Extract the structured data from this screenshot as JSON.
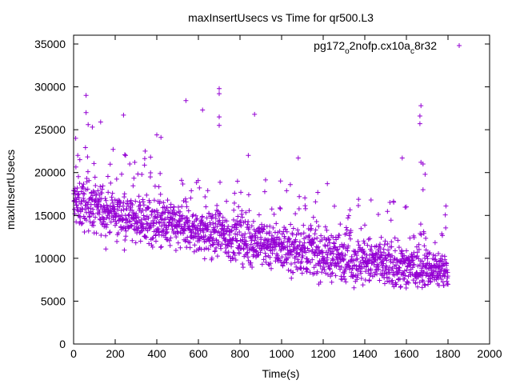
{
  "chart_data": {
    "type": "scatter",
    "title": "maxInsertUsecs vs Time for qr500.L3",
    "xlabel": "Time(s)",
    "ylabel": "maxInsertUsecs",
    "xlim": [
      0,
      2000
    ],
    "ylim": [
      0,
      36000
    ],
    "xticks": [
      0,
      200,
      400,
      600,
      800,
      1000,
      1200,
      1400,
      1600,
      1800,
      2000
    ],
    "yticks": [
      0,
      5000,
      10000,
      15000,
      20000,
      25000,
      30000,
      35000
    ],
    "grid": false,
    "legend_position": "top-right",
    "marker_color": "#9400d3",
    "series": [
      {
        "name": "pg172",
        "name_sub": "o",
        "name_mid": "2nofp.cx10a",
        "name_sub2": "c",
        "name_end": "8r32",
        "trend": {
          "x": [
            0,
            200,
            400,
            600,
            800,
            1000,
            1200,
            1400,
            1600,
            1700,
            1800
          ],
          "y": [
            16500,
            15200,
            14200,
            13200,
            12300,
            11400,
            10500,
            9600,
            9000,
            8800,
            8600
          ]
        },
        "spread": 2000,
        "sample_interval_s": 1,
        "points": [
          [
            10,
            24000
          ],
          [
            20,
            22000
          ],
          [
            30,
            21500
          ],
          [
            60,
            29000
          ],
          [
            60,
            27000
          ],
          [
            70,
            25600
          ],
          [
            90,
            25300
          ],
          [
            130,
            25900
          ],
          [
            190,
            22700
          ],
          [
            240,
            26700
          ],
          [
            250,
            22000
          ],
          [
            370,
            21800
          ],
          [
            400,
            24400
          ],
          [
            420,
            24100
          ],
          [
            540,
            28400
          ],
          [
            620,
            27300
          ],
          [
            700,
            29800
          ],
          [
            700,
            29200
          ],
          [
            700,
            26500
          ],
          [
            700,
            25500
          ],
          [
            870,
            26800
          ],
          [
            840,
            22000
          ],
          [
            1080,
            21700
          ],
          [
            1220,
            18700
          ],
          [
            1430,
            16800
          ],
          [
            1580,
            21700
          ],
          [
            1600,
            16000
          ],
          [
            1670,
            27800
          ],
          [
            1665,
            26600
          ],
          [
            1665,
            25700
          ],
          [
            1670,
            21200
          ],
          [
            1680,
            21000
          ],
          [
            1690,
            19800
          ],
          [
            1680,
            18000
          ],
          [
            1790,
            16100
          ]
        ]
      }
    ]
  }
}
